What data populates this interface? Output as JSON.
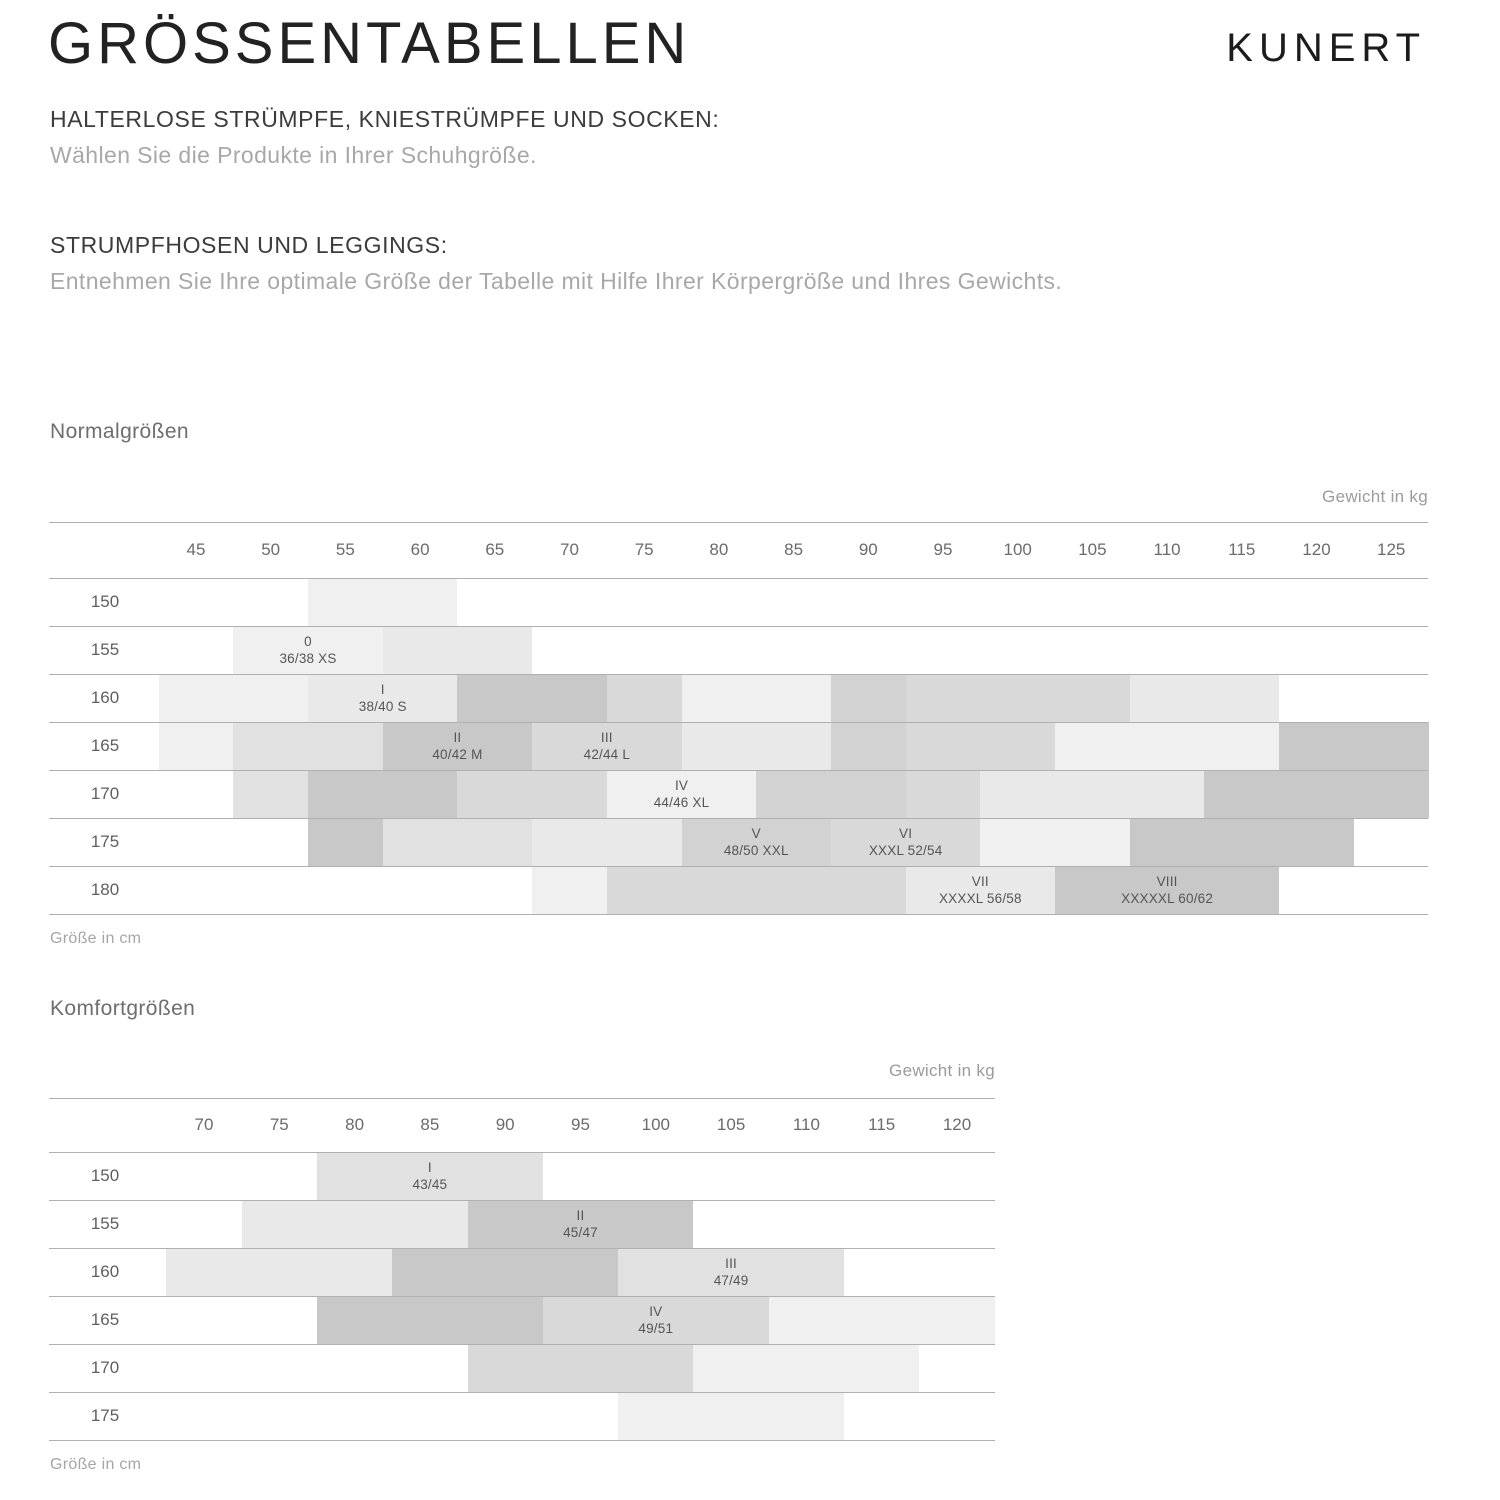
{
  "header": {
    "title": "GRÖSSENTABELLEN",
    "brand": "KUNERT"
  },
  "sections": [
    {
      "heading": "HALTERLOSE STRÜMPFE, KNIESTRÜMPFE UND SOCKEN:",
      "body": "Wählen Sie die Produkte in Ihrer Schuhgröße."
    },
    {
      "heading": "STRUMPFHOSEN UND LEGGINGS:",
      "body": "Entnehmen Sie Ihre optimale Größe der Tabelle mit Hilfe Ihrer Körpergröße und Ihres Gewichts."
    }
  ],
  "palette": {
    "p1": "#f0f0f0",
    "p2": "#e9e9e9",
    "p3": "#e1e1e1",
    "p4": "#d9d9d9",
    "p5": "#d2d2d2",
    "p6": "#c8c8c8"
  },
  "chart_data": [
    {
      "type": "heatmap",
      "title": "Normalgrößen",
      "xlabel": "Gewicht in kg",
      "ylabel": "Größe in cm",
      "x_ticks": [
        45,
        50,
        55,
        60,
        65,
        70,
        75,
        80,
        85,
        90,
        95,
        100,
        105,
        110,
        115,
        120,
        125
      ],
      "x_range_kg": [
        42.5,
        127.5
      ],
      "rows": [
        {
          "cm": "150",
          "segments": [
            {
              "from": 52.5,
              "to": 62.5,
              "shade": "p1"
            }
          ]
        },
        {
          "cm": "155",
          "segments": [
            {
              "from": 47.5,
              "to": 57.5,
              "shade": "p1",
              "roman": "0",
              "size": "36/38 XS"
            },
            {
              "from": 57.5,
              "to": 67.5,
              "shade": "p2"
            }
          ]
        },
        {
          "cm": "160",
          "segments": [
            {
              "from": 42.5,
              "to": 52.5,
              "shade": "p1"
            },
            {
              "from": 52.5,
              "to": 62.5,
              "shade": "p2",
              "roman": "I",
              "size": "38/40 S"
            },
            {
              "from": 62.5,
              "to": 72.5,
              "shade": "p6"
            },
            {
              "from": 72.5,
              "to": 77.5,
              "shade": "p4"
            },
            {
              "from": 77.5,
              "to": 87.5,
              "shade": "p1"
            },
            {
              "from": 87.5,
              "to": 92.5,
              "shade": "p5"
            },
            {
              "from": 92.5,
              "to": 107.5,
              "shade": "p4"
            },
            {
              "from": 107.5,
              "to": 117.5,
              "shade": "p2"
            }
          ]
        },
        {
          "cm": "165",
          "segments": [
            {
              "from": 42.5,
              "to": 47.5,
              "shade": "p1"
            },
            {
              "from": 47.5,
              "to": 57.5,
              "shade": "p3"
            },
            {
              "from": 57.5,
              "to": 67.5,
              "shade": "p6",
              "roman": "II",
              "size": "40/42 M"
            },
            {
              "from": 67.5,
              "to": 77.5,
              "shade": "p4",
              "roman": "III",
              "size": "42/44 L"
            },
            {
              "from": 77.5,
              "to": 87.5,
              "shade": "p2"
            },
            {
              "from": 87.5,
              "to": 92.5,
              "shade": "p5"
            },
            {
              "from": 92.5,
              "to": 102.5,
              "shade": "p4"
            },
            {
              "from": 102.5,
              "to": 117.5,
              "shade": "p1"
            },
            {
              "from": 117.5,
              "to": 127.5,
              "shade": "p6"
            }
          ]
        },
        {
          "cm": "170",
          "segments": [
            {
              "from": 47.5,
              "to": 52.5,
              "shade": "p3"
            },
            {
              "from": 52.5,
              "to": 62.5,
              "shade": "p6"
            },
            {
              "from": 62.5,
              "to": 72.5,
              "shade": "p4"
            },
            {
              "from": 72.5,
              "to": 82.5,
              "shade": "p1",
              "roman": "IV",
              "size": "44/46 XL"
            },
            {
              "from": 82.5,
              "to": 92.5,
              "shade": "p5"
            },
            {
              "from": 92.5,
              "to": 97.5,
              "shade": "p4"
            },
            {
              "from": 97.5,
              "to": 112.5,
              "shade": "p2"
            },
            {
              "from": 112.5,
              "to": 127.5,
              "shade": "p6"
            }
          ]
        },
        {
          "cm": "175",
          "segments": [
            {
              "from": 52.5,
              "to": 57.5,
              "shade": "p6"
            },
            {
              "from": 57.5,
              "to": 67.5,
              "shade": "p3"
            },
            {
              "from": 67.5,
              "to": 77.5,
              "shade": "p2"
            },
            {
              "from": 77.5,
              "to": 87.5,
              "shade": "p5",
              "roman": "V",
              "size": "48/50 XXL"
            },
            {
              "from": 87.5,
              "to": 97.5,
              "shade": "p4",
              "roman": "VI",
              "size": "XXXL 52/54"
            },
            {
              "from": 97.5,
              "to": 107.5,
              "shade": "p1"
            },
            {
              "from": 107.5,
              "to": 122.5,
              "shade": "p6"
            }
          ]
        },
        {
          "cm": "180",
          "segments": [
            {
              "from": 67.5,
              "to": 72.5,
              "shade": "p1"
            },
            {
              "from": 72.5,
              "to": 92.5,
              "shade": "p4"
            },
            {
              "from": 92.5,
              "to": 102.5,
              "shade": "p2",
              "roman": "VII",
              "size": "XXXXL 56/58"
            },
            {
              "from": 102.5,
              "to": 117.5,
              "shade": "p6",
              "roman": "VIII",
              "size": "XXXXXL 60/62"
            }
          ]
        }
      ]
    },
    {
      "type": "heatmap",
      "title": "Komfortgrößen",
      "xlabel": "Gewicht in kg",
      "ylabel": "Größe in cm",
      "x_ticks": [
        70,
        75,
        80,
        85,
        90,
        95,
        100,
        105,
        110,
        115,
        120
      ],
      "x_range_kg": [
        67.5,
        122.5
      ],
      "rows": [
        {
          "cm": "150",
          "segments": [
            {
              "from": 77.5,
              "to": 92.5,
              "shade": "p3",
              "roman": "I",
              "size": "43/45"
            }
          ]
        },
        {
          "cm": "155",
          "segments": [
            {
              "from": 72.5,
              "to": 87.5,
              "shade": "p2"
            },
            {
              "from": 87.5,
              "to": 102.5,
              "shade": "p6",
              "roman": "II",
              "size": "45/47"
            }
          ]
        },
        {
          "cm": "160",
          "segments": [
            {
              "from": 67.5,
              "to": 82.5,
              "shade": "p2"
            },
            {
              "from": 82.5,
              "to": 97.5,
              "shade": "p6"
            },
            {
              "from": 97.5,
              "to": 112.5,
              "shade": "p3",
              "roman": "III",
              "size": "47/49"
            }
          ]
        },
        {
          "cm": "165",
          "segments": [
            {
              "from": 77.5,
              "to": 92.5,
              "shade": "p6"
            },
            {
              "from": 92.5,
              "to": 107.5,
              "shade": "p4",
              "roman": "IV",
              "size": "49/51"
            },
            {
              "from": 107.5,
              "to": 122.5,
              "shade": "p1"
            }
          ]
        },
        {
          "cm": "170",
          "segments": [
            {
              "from": 87.5,
              "to": 102.5,
              "shade": "p4"
            },
            {
              "from": 102.5,
              "to": 117.5,
              "shade": "p1"
            }
          ]
        },
        {
          "cm": "175",
          "segments": [
            {
              "from": 97.5,
              "to": 112.5,
              "shade": "p1"
            }
          ]
        }
      ]
    }
  ]
}
